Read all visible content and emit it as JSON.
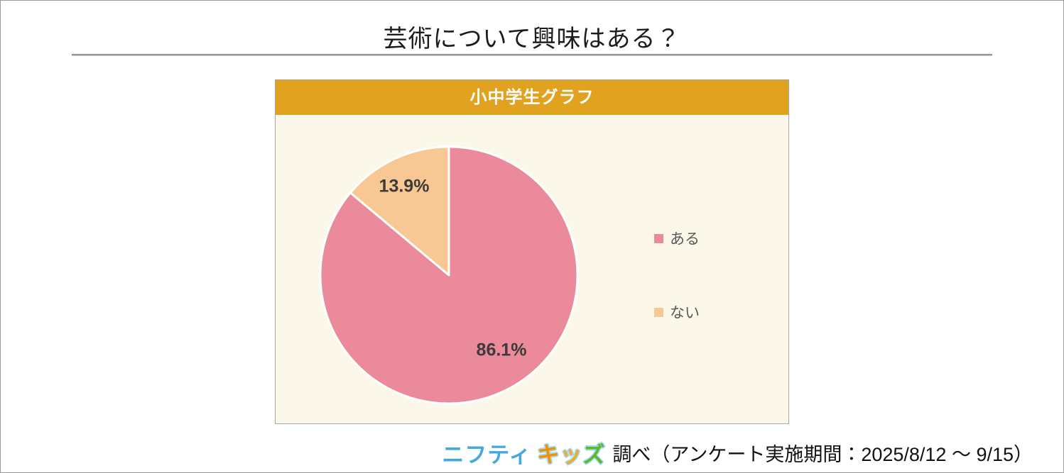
{
  "page": {
    "title": "芸術について興味はある？"
  },
  "panel": {
    "title": "小中学生グラフ",
    "header_bg": "#E0A21F",
    "body_bg": "#FBF8E9"
  },
  "chart_data": {
    "type": "pie",
    "title": "小中学生グラフ",
    "question": "芸術について興味はある？",
    "labels": [
      "ある",
      "ない"
    ],
    "values": [
      86.1,
      13.9
    ],
    "value_labels": [
      "86.1%",
      "13.9%"
    ],
    "colors": [
      "#EA8A9B",
      "#F7C894"
    ],
    "slice_border_color": "#FFFFFF",
    "start_angle": "top",
    "direction": "clockwise",
    "legend_position": "right"
  },
  "legend": {
    "items": [
      {
        "label": "ある",
        "color": "#EA8A9B"
      },
      {
        "label": "ない",
        "color": "#F7C894"
      }
    ]
  },
  "footer": {
    "logo": {
      "part1": "ニフティ",
      "part1_color": "#45A9DC",
      "part2": [
        {
          "char": "キ",
          "color": "#F39000"
        },
        {
          "char": "ッ",
          "color": "#F5A91F"
        },
        {
          "char": "ズ",
          "color": "#5FB72E"
        }
      ],
      "outline_color": "#A6D9F2"
    },
    "text": "調べ（アンケート実施期間：2025/8/12 ～ 9/15）"
  }
}
